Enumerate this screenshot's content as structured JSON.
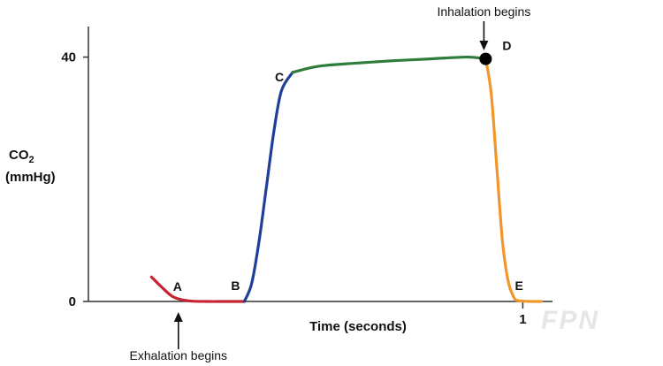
{
  "chart_data": {
    "type": "line",
    "xlabel": "Time (seconds)",
    "ylabel": "CO2",
    "ylabel_sub": "2",
    "ylabel_line1_prefix": "CO",
    "ylabel_units": "(mmHg)",
    "x_ticks": [
      {
        "value": 1,
        "label": "1"
      }
    ],
    "y_ticks": [
      {
        "value": 0,
        "label": "0"
      },
      {
        "value": 40,
        "label": "40"
      }
    ],
    "xlim": [
      -0.17,
      1.08
    ],
    "ylim": [
      0,
      45
    ],
    "grid": false,
    "series": [
      {
        "segment": "A-B",
        "color": "#c62430",
        "x": [
          0.0,
          0.03,
          0.06,
          0.1,
          0.15,
          0.2,
          0.25
        ],
        "y": [
          4.0,
          2.2,
          0.7,
          0.1,
          0.0,
          0.0,
          0.0
        ]
      },
      {
        "segment": "B-C",
        "color": "#1f3f9a",
        "x": [
          0.25,
          0.27,
          0.29,
          0.31,
          0.33,
          0.35,
          0.38
        ],
        "y": [
          0.0,
          3.0,
          10.0,
          19.0,
          28.0,
          34.5,
          37.5
        ]
      },
      {
        "segment": "C-D",
        "color": "#2e7d3a",
        "x": [
          0.38,
          0.45,
          0.55,
          0.65,
          0.75,
          0.85,
          0.9
        ],
        "y": [
          37.5,
          38.5,
          39.0,
          39.4,
          39.7,
          40.0,
          39.7
        ]
      },
      {
        "segment": "D-E",
        "color": "#f0962a",
        "x": [
          0.9,
          0.915,
          0.93,
          0.945,
          0.96,
          0.975,
          0.99,
          1.05
        ],
        "y": [
          39.7,
          34.0,
          22.0,
          10.0,
          3.5,
          0.8,
          0.1,
          0.0
        ]
      }
    ],
    "point_labels": [
      {
        "text": "A",
        "x": 0.07,
        "y": 0
      },
      {
        "text": "B",
        "x": 0.25,
        "y": 0
      },
      {
        "text": "C",
        "x": 0.38,
        "y": 37.5
      },
      {
        "text": "D",
        "x": 0.9,
        "y": 40
      },
      {
        "text": "E",
        "x": 0.99,
        "y": 0
      }
    ],
    "marker": {
      "x": 0.9,
      "y": 39.7,
      "color": "#000000"
    },
    "annotations": [
      {
        "text": "Inhalation begins",
        "x": 0.9,
        "y": 40
      },
      {
        "text": "Exhalation begins",
        "x": 0.07,
        "y": 0
      }
    ]
  },
  "watermark": "FPN"
}
